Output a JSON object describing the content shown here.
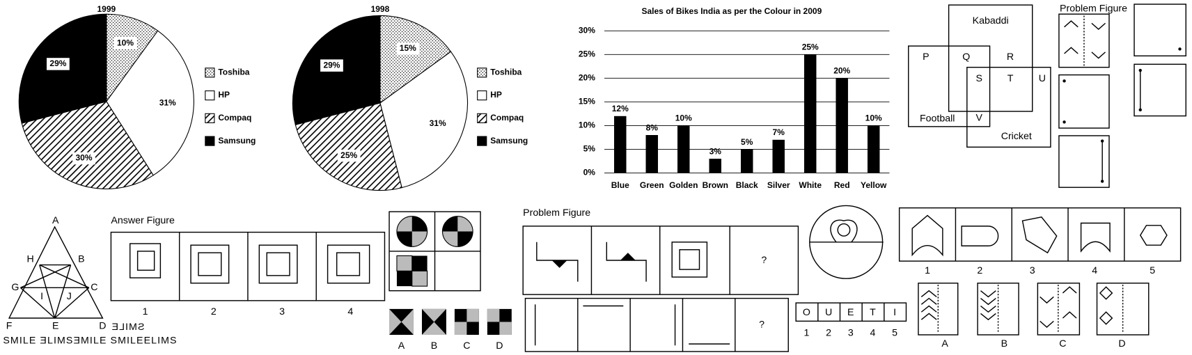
{
  "chart_data": [
    {
      "type": "pie",
      "title": "1999",
      "categories": [
        "Toshiba",
        "HP",
        "Compaq",
        "Samsung"
      ],
      "values": [
        10,
        31,
        30,
        29
      ],
      "value_labels": [
        "10%",
        "31%",
        "30%",
        "29%"
      ],
      "colors": [
        "url(#dots)",
        "#ffffff",
        "url(#hatch)",
        "#000000"
      ]
    },
    {
      "type": "pie",
      "title": "1998",
      "categories": [
        "Toshiba",
        "HP",
        "Compaq",
        "Samsung"
      ],
      "values": [
        15,
        31,
        25,
        29
      ],
      "value_labels": [
        "15%",
        "31%",
        "25%",
        "29%"
      ],
      "colors": [
        "url(#dots)",
        "#ffffff",
        "url(#hatch)",
        "#000000"
      ]
    },
    {
      "type": "bar",
      "title": "Sales of Bikes India as per the Colour in 2009",
      "categories": [
        "Blue",
        "Green",
        "Golden",
        "Brown",
        "Black",
        "Silver",
        "White",
        "Red",
        "Yellow"
      ],
      "values": [
        12,
        8,
        10,
        3,
        5,
        7,
        25,
        20,
        10
      ],
      "value_labels": [
        "12%",
        "8%",
        "10%",
        "3%",
        "5%",
        "7%",
        "25%",
        "20%",
        "10%"
      ],
      "color": "#000000",
      "ylim": [
        0,
        30
      ],
      "yticks": [
        {
          "value": 0,
          "label": "0%"
        },
        {
          "value": 5,
          "label": "5%"
        },
        {
          "value": 10,
          "label": "10%"
        },
        {
          "value": 15,
          "label": "15%"
        },
        {
          "value": 20,
          "label": "20%"
        },
        {
          "value": 25,
          "label": "25%"
        },
        {
          "value": 30,
          "label": "30%"
        }
      ],
      "grid": true
    }
  ],
  "venn": {
    "sets": [
      "Kabaddi",
      "Football",
      "Cricket"
    ],
    "regions": [
      "P",
      "Q",
      "R",
      "S",
      "T",
      "U",
      "V"
    ]
  },
  "problem_figure_top": {
    "title": "Problem Figure"
  },
  "triangle": {
    "vertices": [
      "A",
      "H",
      "B",
      "G",
      "I",
      "J",
      "C",
      "F",
      "E",
      "D"
    ],
    "question": "SMILE",
    "options": "SMILE ƎLIMSƎMILE SMILEELIMS"
  },
  "answer_figure": {
    "title": "Answer Figure",
    "labels": [
      "1",
      "2",
      "3",
      "4"
    ]
  },
  "quadrants": {
    "labels": [
      "A",
      "B",
      "C",
      "D"
    ]
  },
  "problem_figure": {
    "title": "Problem Figure",
    "question": "?",
    "question2": "?"
  },
  "letters": {
    "cells": [
      "O",
      "U",
      "E",
      "T",
      "I"
    ],
    "labels": [
      "1",
      "2",
      "3",
      "4",
      "5"
    ]
  },
  "shapes": {
    "labels": [
      "1",
      "2",
      "3",
      "4",
      "5"
    ]
  },
  "chevrons": {
    "labels": [
      "A",
      "B",
      "C",
      "D"
    ]
  }
}
